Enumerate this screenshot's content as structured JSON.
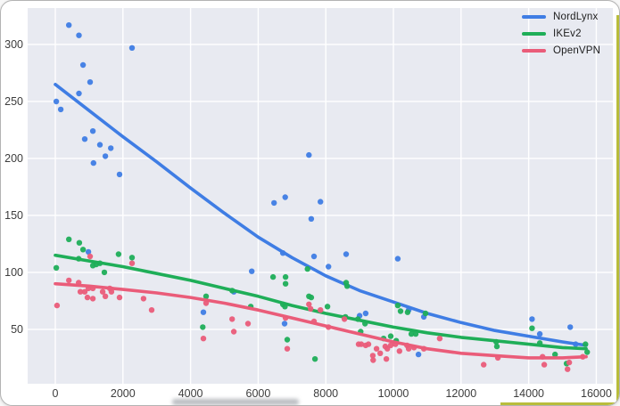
{
  "legend": {
    "items": [
      {
        "label": "NordLynx",
        "color": "#3f7de4"
      },
      {
        "label": "IKEv2",
        "color": "#1fae58"
      },
      {
        "label": "OpenVPN",
        "color": "#ea5c79"
      }
    ]
  },
  "axes": {
    "x_tick_labels": [
      "0",
      "2000",
      "4000",
      "6000",
      "8000",
      "10000",
      "12000",
      "14000",
      "16000"
    ],
    "y_tick_labels": [
      "50",
      "100",
      "150",
      "200",
      "250",
      "300"
    ]
  },
  "style": {
    "plot_bg": "#e8eaf1",
    "grid_color": "#ffffff",
    "tick_color": "#3d3d3d",
    "accent_edge": "#b9bd3c"
  },
  "chart_data": {
    "type": "scatter",
    "title": "",
    "xlabel": "",
    "ylabel": "",
    "grid": true,
    "legend_position": "top-right",
    "xlim": [
      -818,
      16490
    ],
    "ylim": [
      2.3,
      332
    ],
    "x_ticks": [
      0,
      2000,
      4000,
      6000,
      8000,
      10000,
      12000,
      14000,
      16000
    ],
    "y_ticks": [
      50,
      100,
      150,
      200,
      250,
      300
    ],
    "series": [
      {
        "name": "NordLynx",
        "color": "#3f7de4",
        "points": [
          [
            30,
            250
          ],
          [
            160,
            243
          ],
          [
            400,
            317
          ],
          [
            700,
            308
          ],
          [
            700,
            257
          ],
          [
            820,
            282
          ],
          [
            870,
            217
          ],
          [
            980,
            118
          ],
          [
            1030,
            267
          ],
          [
            1110,
            224
          ],
          [
            1130,
            196
          ],
          [
            1320,
            212
          ],
          [
            1480,
            202
          ],
          [
            1640,
            209
          ],
          [
            1900,
            186
          ],
          [
            2270,
            297
          ],
          [
            4380,
            65
          ],
          [
            5280,
            83
          ],
          [
            5810,
            101
          ],
          [
            6470,
            161
          ],
          [
            6730,
            117
          ],
          [
            6780,
            55
          ],
          [
            6800,
            166
          ],
          [
            7500,
            203
          ],
          [
            7570,
            147
          ],
          [
            7650,
            114
          ],
          [
            7840,
            162
          ],
          [
            8080,
            105
          ],
          [
            8600,
            116
          ],
          [
            9000,
            62
          ],
          [
            9180,
            64
          ],
          [
            10130,
            112
          ],
          [
            10450,
            67
          ],
          [
            10740,
            28
          ],
          [
            10900,
            61
          ],
          [
            14100,
            59
          ],
          [
            14330,
            46
          ],
          [
            15230,
            52
          ],
          [
            15390,
            37
          ]
        ],
        "trend": [
          [
            0,
            265
          ],
          [
            1000,
            242
          ],
          [
            2000,
            219
          ],
          [
            3000,
            197
          ],
          [
            4000,
            174
          ],
          [
            5000,
            152
          ],
          [
            6000,
            131
          ],
          [
            7000,
            113
          ],
          [
            8000,
            97
          ],
          [
            9000,
            84
          ],
          [
            10000,
            74
          ],
          [
            11000,
            64
          ],
          [
            12000,
            56
          ],
          [
            13000,
            49
          ],
          [
            14000,
            44
          ],
          [
            15000,
            39
          ],
          [
            15700,
            36
          ]
        ]
      },
      {
        "name": "IKEv2",
        "color": "#1fae58",
        "points": [
          [
            30,
            104
          ],
          [
            400,
            129
          ],
          [
            690,
            112
          ],
          [
            710,
            126
          ],
          [
            820,
            120
          ],
          [
            1110,
            106
          ],
          [
            1210,
            107
          ],
          [
            1320,
            108
          ],
          [
            1450,
            100
          ],
          [
            1870,
            116
          ],
          [
            2270,
            113
          ],
          [
            4360,
            52
          ],
          [
            4460,
            79
          ],
          [
            5230,
            84
          ],
          [
            5780,
            70
          ],
          [
            6440,
            96
          ],
          [
            6810,
            96
          ],
          [
            6810,
            90
          ],
          [
            6730,
            72
          ],
          [
            6790,
            70
          ],
          [
            6860,
            41
          ],
          [
            7460,
            103
          ],
          [
            7500,
            79
          ],
          [
            7570,
            78
          ],
          [
            7680,
            24
          ],
          [
            8050,
            70
          ],
          [
            8580,
            61
          ],
          [
            8600,
            91
          ],
          [
            8630,
            88
          ],
          [
            8950,
            59
          ],
          [
            9030,
            48
          ],
          [
            9160,
            55
          ],
          [
            9710,
            42
          ],
          [
            9920,
            44
          ],
          [
            10080,
            40
          ],
          [
            10130,
            71
          ],
          [
            10210,
            66
          ],
          [
            10420,
            65
          ],
          [
            10530,
            46
          ],
          [
            10660,
            46
          ],
          [
            10950,
            64
          ],
          [
            13040,
            39
          ],
          [
            13060,
            35
          ],
          [
            14100,
            51
          ],
          [
            14330,
            38
          ],
          [
            14780,
            28
          ],
          [
            15120,
            20
          ],
          [
            15680,
            37
          ],
          [
            15730,
            30
          ]
        ],
        "trend": [
          [
            0,
            115
          ],
          [
            1000,
            110
          ],
          [
            2000,
            105
          ],
          [
            3000,
            99
          ],
          [
            4000,
            93
          ],
          [
            5000,
            86
          ],
          [
            6000,
            79
          ],
          [
            7000,
            71
          ],
          [
            8000,
            64
          ],
          [
            9000,
            58
          ],
          [
            10000,
            52
          ],
          [
            11000,
            47
          ],
          [
            12000,
            43
          ],
          [
            13000,
            40
          ],
          [
            14000,
            37
          ],
          [
            15000,
            34
          ],
          [
            15700,
            33
          ]
        ]
      },
      {
        "name": "OpenVPN",
        "color": "#ea5c79",
        "points": [
          [
            50,
            71
          ],
          [
            400,
            93
          ],
          [
            690,
            91
          ],
          [
            740,
            83
          ],
          [
            870,
            83
          ],
          [
            950,
            78
          ],
          [
            980,
            86
          ],
          [
            1030,
            114
          ],
          [
            1110,
            86
          ],
          [
            1110,
            77
          ],
          [
            1400,
            83
          ],
          [
            1480,
            79
          ],
          [
            1610,
            86
          ],
          [
            1660,
            83
          ],
          [
            1900,
            78
          ],
          [
            2270,
            108
          ],
          [
            2610,
            77
          ],
          [
            2850,
            67
          ],
          [
            4380,
            42
          ],
          [
            4460,
            73
          ],
          [
            5230,
            59
          ],
          [
            5280,
            48
          ],
          [
            5700,
            55
          ],
          [
            6810,
            60
          ],
          [
            6860,
            33
          ],
          [
            7500,
            72
          ],
          [
            7550,
            68
          ],
          [
            7650,
            57
          ],
          [
            7840,
            67
          ],
          [
            8080,
            52
          ],
          [
            8550,
            59
          ],
          [
            8970,
            37
          ],
          [
            9050,
            37
          ],
          [
            9180,
            36
          ],
          [
            9260,
            37
          ],
          [
            9390,
            27
          ],
          [
            9400,
            23
          ],
          [
            9500,
            33
          ],
          [
            9610,
            29
          ],
          [
            9760,
            35
          ],
          [
            9790,
            24
          ],
          [
            9820,
            33
          ],
          [
            9920,
            36
          ],
          [
            10060,
            37
          ],
          [
            10180,
            31
          ],
          [
            10400,
            36
          ],
          [
            10450,
            33
          ],
          [
            10610,
            34
          ],
          [
            10900,
            33
          ],
          [
            11370,
            42
          ],
          [
            12670,
            19
          ],
          [
            13090,
            25
          ],
          [
            14410,
            26
          ],
          [
            14460,
            19
          ],
          [
            15150,
            15
          ],
          [
            15200,
            21
          ],
          [
            15600,
            26
          ]
        ],
        "trend": [
          [
            0,
            90
          ],
          [
            1000,
            88
          ],
          [
            2000,
            85
          ],
          [
            3000,
            82
          ],
          [
            4000,
            78
          ],
          [
            5000,
            73
          ],
          [
            6000,
            67
          ],
          [
            7000,
            60
          ],
          [
            8000,
            53
          ],
          [
            9000,
            46
          ],
          [
            10000,
            39
          ],
          [
            11000,
            33
          ],
          [
            12000,
            29
          ],
          [
            13000,
            27
          ],
          [
            14000,
            25
          ],
          [
            15000,
            25
          ],
          [
            15700,
            26
          ]
        ]
      }
    ]
  }
}
